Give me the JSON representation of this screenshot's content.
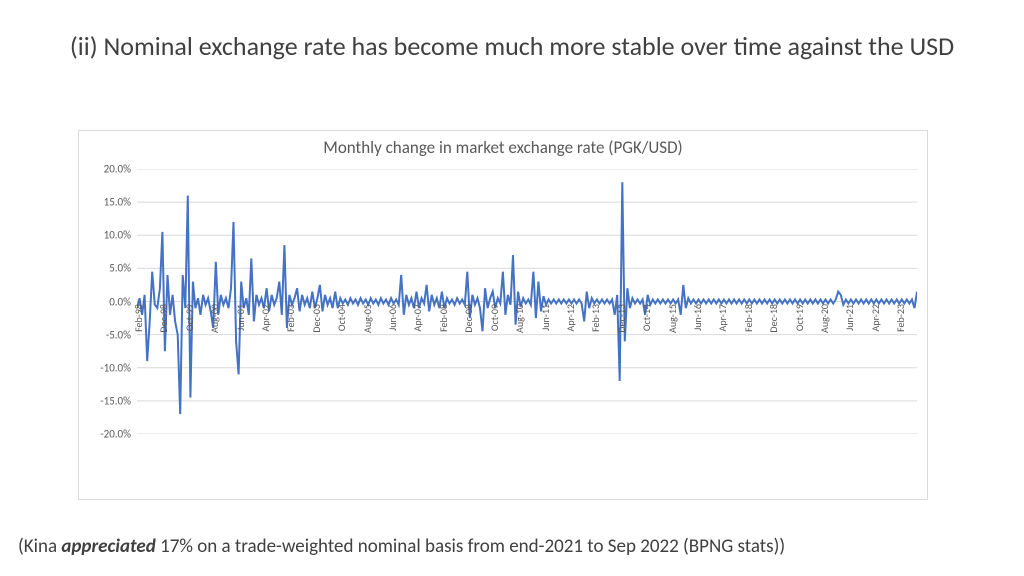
{
  "slide": {
    "title": "(ii) Nominal exchange rate has become much more stable over time against the USD",
    "title_fontsize": 26,
    "title_color": "#404040",
    "footnote_prefix": "(Kina ",
    "footnote_em": "appreciated",
    "footnote_suffix": " 17% on a trade-weighted nominal basis from end-2021 to Sep 2022 (BPNG stats))"
  },
  "chart": {
    "type": "line",
    "title": "Monthly change in market exchange rate (PGK/USD)",
    "title_fontsize": 17,
    "title_color": "#595959",
    "series_color": "#4472c4",
    "line_width": 2,
    "background_color": "#ffffff",
    "border_color": "#d9d9d9",
    "grid_color": "#d9d9d9",
    "ylim": [
      -20,
      20
    ],
    "ytick_step": 5,
    "ytick_labels": [
      "-20.0%",
      "-15.0%",
      "-10.0%",
      "-5.0%",
      "0.0%",
      "5.0%",
      "10.0%",
      "15.0%",
      "20.0%"
    ],
    "x_labels": [
      "Feb-98",
      "Dec-98",
      "Oct-99",
      "Aug-00",
      "Jun-01",
      "Apr-02",
      "Feb-03",
      "Dec-03",
      "Oct-04",
      "Aug-05",
      "Jun-06",
      "Apr-07",
      "Feb-08",
      "Dec-08",
      "Oct-09",
      "Aug-10",
      "Jun-11",
      "Apr-12",
      "Feb-13",
      "Dec-13",
      "Oct-14",
      "Aug-15",
      "Jun-16",
      "Apr-17",
      "Feb-18",
      "Dec-18",
      "Oct-19",
      "Aug-20",
      "Jun-21",
      "Apr-22",
      "Feb-23"
    ],
    "x_label_step": 10,
    "n_points": 310,
    "values": [
      -1.0,
      0.5,
      -2.0,
      1.0,
      -9.0,
      -3.0,
      4.5,
      -0.5,
      -1.0,
      2.0,
      10.5,
      -7.5,
      4.0,
      -2.0,
      1.0,
      -3.0,
      -5.0,
      -17.0,
      4.0,
      -1.0,
      16.0,
      -14.5,
      3.0,
      -1.0,
      0.5,
      -2.0,
      1.0,
      -0.5,
      0.5,
      -1.5,
      -4.0,
      6.0,
      -2.0,
      1.0,
      -0.5,
      0.5,
      -1.0,
      2.0,
      12.0,
      -6.0,
      -11.0,
      3.0,
      -1.0,
      0.5,
      -2.0,
      6.5,
      -3.0,
      1.0,
      -0.5,
      0.5,
      -1.0,
      2.0,
      -1.5,
      1.0,
      -0.5,
      0.5,
      3.0,
      -2.0,
      8.5,
      -4.0,
      1.0,
      -0.5,
      0.5,
      2.0,
      -1.5,
      1.0,
      -0.5,
      0.5,
      -1.0,
      1.5,
      -1.0,
      0.5,
      2.5,
      -1.5,
      1.0,
      -0.5,
      0.5,
      -1.0,
      1.5,
      -1.0,
      0.5,
      -0.3,
      0.3,
      -0.5,
      0.5,
      -0.3,
      0.3,
      -0.5,
      0.5,
      -0.3,
      0.3,
      -0.5,
      0.5,
      -0.3,
      0.3,
      -0.5,
      0.5,
      -0.3,
      0.3,
      -0.5,
      0.5,
      -0.3,
      0.3,
      -0.5,
      4.0,
      -2.0,
      1.0,
      -0.5,
      0.5,
      -1.0,
      1.5,
      -1.0,
      0.5,
      -0.3,
      2.5,
      -1.5,
      1.0,
      -0.5,
      0.5,
      -1.0,
      1.5,
      -1.0,
      0.5,
      -0.3,
      0.3,
      -0.5,
      0.5,
      -0.3,
      0.3,
      -0.5,
      4.5,
      -2.5,
      1.0,
      -0.5,
      0.5,
      -1.0,
      -4.5,
      2.0,
      -1.0,
      0.5,
      1.5,
      -1.0,
      0.5,
      -0.3,
      4.5,
      -2.0,
      1.0,
      -0.5,
      7.0,
      -3.5,
      1.5,
      -0.8,
      0.5,
      -0.3,
      0.3,
      -0.5,
      4.5,
      -2.5,
      3.0,
      -1.5,
      0.8,
      -0.5,
      0.3,
      -0.3,
      0.3,
      -0.3,
      0.3,
      -0.3,
      0.3,
      -0.3,
      0.3,
      -0.3,
      0.3,
      -0.3,
      0.3,
      -0.3,
      -3.0,
      1.5,
      -1.0,
      0.5,
      -0.3,
      0.3,
      -0.3,
      0.3,
      -0.3,
      0.3,
      -0.3,
      0.3,
      -2.0,
      1.0,
      -12.0,
      18.0,
      -6.0,
      2.0,
      -1.0,
      0.5,
      -0.3,
      0.3,
      -0.3,
      0.3,
      -2.0,
      1.0,
      -0.5,
      0.3,
      -0.3,
      0.3,
      -0.3,
      0.3,
      -0.3,
      0.3,
      -0.3,
      0.3,
      -0.3,
      0.3,
      -2.0,
      2.5,
      -1.0,
      0.5,
      -0.3,
      0.3,
      -0.3,
      0.3,
      -0.3,
      0.3,
      -0.3,
      0.3,
      -0.3,
      0.3,
      -0.3,
      0.3,
      -0.3,
      0.3,
      -0.3,
      0.3,
      -0.3,
      0.3,
      -0.3,
      0.3,
      -0.3,
      0.3,
      -0.3,
      0.3,
      -0.3,
      0.3,
      -0.3,
      0.3,
      -0.3,
      0.3,
      -0.3,
      0.3,
      -0.3,
      0.3,
      -0.3,
      0.3,
      -0.3,
      0.3,
      -0.3,
      0.3,
      -0.3,
      0.3,
      -0.3,
      0.3,
      -0.3,
      0.3,
      -0.3,
      0.3,
      -0.3,
      0.3,
      -0.3,
      0.3,
      -0.3,
      0.3,
      -0.3,
      0.3,
      -0.3,
      0.3,
      1.5,
      1.0,
      -0.5,
      0.3,
      -0.3,
      0.3,
      -0.3,
      0.3,
      -0.3,
      0.3,
      -0.3,
      0.3,
      -0.3,
      0.3,
      -0.3,
      0.3,
      -0.3,
      0.3,
      -0.3,
      0.3,
      -0.3,
      0.3,
      -0.3,
      0.3,
      -0.3,
      0.3,
      -0.3,
      0.3,
      -0.3,
      0.3,
      -1.0,
      1.5
    ]
  }
}
